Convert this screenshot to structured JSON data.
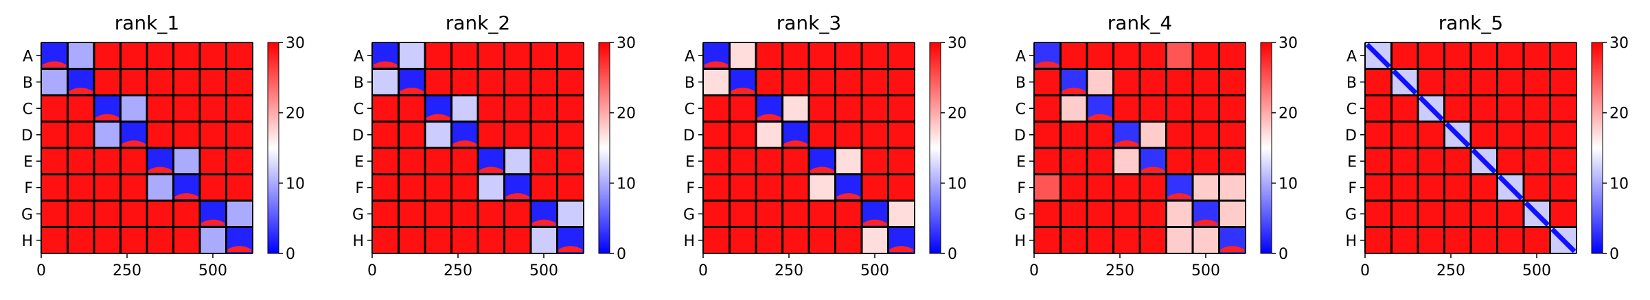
{
  "chart_data": [
    {
      "type": "heatmap",
      "title": "rank_1",
      "row_labels": [
        "A",
        "B",
        "C",
        "D",
        "E",
        "F",
        "G",
        "H"
      ],
      "x_ticks": [
        0,
        250,
        500
      ],
      "xlim": [
        0,
        616
      ],
      "colorbar": {
        "range": [
          0,
          30
        ],
        "ticks": [
          0,
          10,
          20,
          30
        ],
        "colormap": "bwr"
      },
      "block_groups": [
        [
          0,
          1
        ],
        [
          2,
          3
        ],
        [
          4,
          5
        ],
        [
          6,
          7
        ]
      ],
      "block_mean_values": {
        "diagonal": 2,
        "paired_off_diagonal": 10,
        "other": 29
      }
    },
    {
      "type": "heatmap",
      "title": "rank_2",
      "row_labels": [
        "A",
        "B",
        "C",
        "D",
        "E",
        "F",
        "G",
        "H"
      ],
      "x_ticks": [
        0,
        250,
        500
      ],
      "xlim": [
        0,
        616
      ],
      "colorbar": {
        "range": [
          0,
          30
        ],
        "ticks": [
          0,
          10,
          20,
          30
        ],
        "colormap": "bwr"
      },
      "block_groups": [
        [
          0,
          1
        ],
        [
          2,
          3
        ],
        [
          4,
          5
        ],
        [
          6,
          7
        ]
      ],
      "block_mean_values": {
        "diagonal": 2,
        "paired_off_diagonal": 12,
        "other": 29
      }
    },
    {
      "type": "heatmap",
      "title": "rank_3",
      "row_labels": [
        "A",
        "B",
        "C",
        "D",
        "E",
        "F",
        "G",
        "H"
      ],
      "x_ticks": [
        0,
        250,
        500
      ],
      "xlim": [
        0,
        616
      ],
      "colorbar": {
        "range": [
          0,
          30
        ],
        "ticks": [
          0,
          10,
          20,
          30
        ],
        "colormap": "bwr"
      },
      "block_groups": [
        [
          0,
          1
        ],
        [
          2,
          3
        ],
        [
          4,
          5
        ],
        [
          6,
          7
        ]
      ],
      "block_mean_values": {
        "diagonal": 2,
        "paired_off_diagonal": 17,
        "other": 29
      }
    },
    {
      "type": "heatmap",
      "title": "rank_4",
      "row_labels": [
        "A",
        "B",
        "C",
        "D",
        "E",
        "F",
        "G",
        "H"
      ],
      "x_ticks": [
        0,
        250,
        500
      ],
      "xlim": [
        0,
        616
      ],
      "colorbar": {
        "range": [
          0,
          30
        ],
        "ticks": [
          0,
          10,
          20,
          30
        ],
        "colormap": "bwr"
      },
      "block_groups": [
        [
          0
        ],
        [
          1,
          2
        ],
        [
          3,
          4
        ],
        [
          5,
          6,
          7
        ]
      ],
      "diagonal_blocks_only": [
        0,
        5
      ],
      "block_mean_values": {
        "diagonal": 3,
        "paired_off_diagonal": 18,
        "other": 29,
        "a_f_pair": 25
      }
    },
    {
      "type": "heatmap",
      "title": "rank_5",
      "row_labels": [
        "A",
        "B",
        "C",
        "D",
        "E",
        "F",
        "G",
        "H"
      ],
      "x_ticks": [
        0,
        250,
        500
      ],
      "xlim": [
        0,
        616
      ],
      "colorbar": {
        "range": [
          0,
          30
        ],
        "ticks": [
          0,
          10,
          20,
          30
        ],
        "colormap": "bwr"
      },
      "block_groups": [
        [
          0
        ],
        [
          1
        ],
        [
          2
        ],
        [
          3
        ],
        [
          4
        ],
        [
          5
        ],
        [
          6
        ],
        [
          7
        ]
      ],
      "diagonal_style": "narrow-band",
      "block_mean_values": {
        "diagonal": 12,
        "paired_off_diagonal": 27,
        "other": 29
      }
    }
  ]
}
